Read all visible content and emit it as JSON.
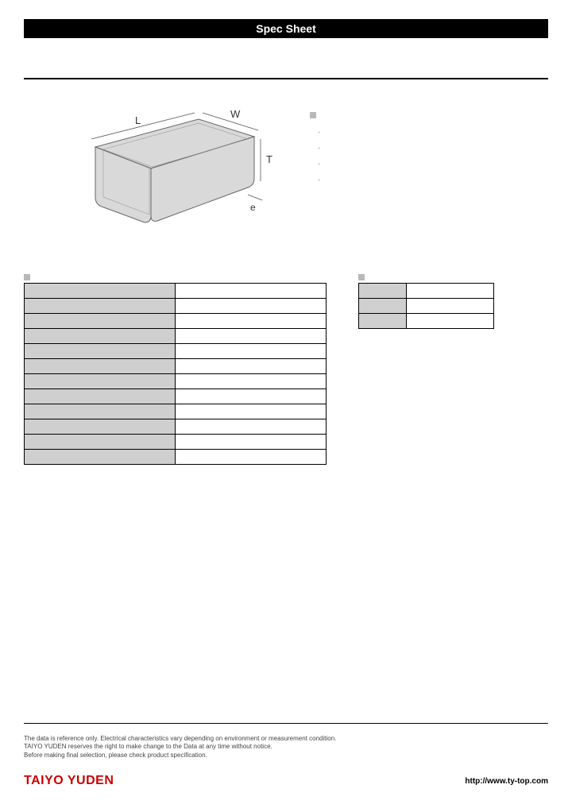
{
  "page_title": "Spec Sheet",
  "diagram": {
    "labels": {
      "l": "L",
      "w": "W",
      "t": "T",
      "e": "e"
    },
    "fill_color": "#d9d9d9",
    "stroke_color": "#666666"
  },
  "features": {
    "heading": "",
    "items": [
      "-",
      "-",
      "-",
      "-"
    ]
  },
  "spec_table": {
    "heading": "",
    "rows": [
      {
        "label": "",
        "value": ""
      },
      {
        "label": "",
        "value": ""
      },
      {
        "label": "",
        "value": ""
      },
      {
        "label": "",
        "value": ""
      },
      {
        "label": "",
        "value": ""
      },
      {
        "label": "",
        "value": ""
      },
      {
        "label": "",
        "value": ""
      },
      {
        "label": "",
        "value": ""
      },
      {
        "label": "",
        "value": ""
      },
      {
        "label": "",
        "value": ""
      },
      {
        "label": "",
        "value": ""
      },
      {
        "label": "",
        "value": ""
      }
    ],
    "label_col_bg": "#cfcfcf",
    "value_col_bg": "#ffffff",
    "border_color": "#000000"
  },
  "package_table": {
    "heading": "",
    "rows": [
      {
        "label": "",
        "value": ""
      },
      {
        "label": "",
        "value": ""
      },
      {
        "label": "",
        "value": ""
      }
    ],
    "label_col_bg": "#cfcfcf",
    "value_col_bg": "#ffffff",
    "border_color": "#000000"
  },
  "footer": {
    "disclaimer_lines": [
      "The data is reference only. Electrical characteristics vary depending on environment or measurement condition.",
      "TAIYO YUDEN reserves the right to make change to the Data at any time without notice.",
      "Before making final selection, please check product specification."
    ],
    "brand": "TAIYO YUDEN",
    "url": "http://www.ty-top.com"
  },
  "colors": {
    "title_bg": "#000000",
    "title_fg": "#ffffff",
    "brand": "#cc0000",
    "bullet": "#b8b8b8"
  }
}
